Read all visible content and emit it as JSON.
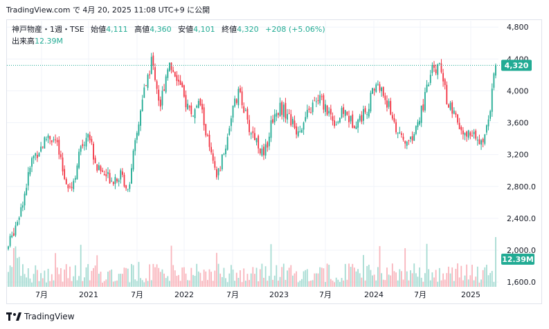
{
  "header": {
    "text": "TradingView.com で 4月 20, 2025 11:08 UTC+9 に公開"
  },
  "legend": {
    "symbol": "神戸物産・1週・TSE",
    "open_label": "始値",
    "open_value": "4,111",
    "high_label": "高値",
    "high_value": "4,360",
    "low_label": "安値",
    "low_value": "4,101",
    "close_label": "終値",
    "close_value": "4,320",
    "change": "+208 (+5.06%)"
  },
  "volume_legend": {
    "label": "出来高",
    "value": "12.39M"
  },
  "price_badge": "4,320",
  "volume_badge": "12.39M",
  "footer": {
    "brand": "TradingView"
  },
  "colors": {
    "up": "#22ab94",
    "down": "#f23645",
    "vol_up": "#a7dcd3",
    "vol_down": "#f9b6bd",
    "grid": "#f0f3fa",
    "last_line": "#22ab94"
  },
  "chart_data": {
    "type": "candlestick",
    "y_axis_ticks": [
      "4,800",
      "4,400",
      "4,000",
      "3,600",
      "3,200",
      "2,800.0",
      "2,400.0",
      "2,000.0",
      "1,600.0"
    ],
    "y_axis_values": [
      4800,
      4400,
      4000,
      3600,
      3200,
      2800,
      2400,
      2000,
      1600
    ],
    "x_axis_ticks": [
      "7月",
      "2021",
      "7月",
      "2022",
      "7月",
      "2023",
      "7月",
      "2024",
      "7月",
      "2025"
    ],
    "ylim": [
      1540,
      4880
    ],
    "last_close": 4320,
    "last_volume": "12.39M",
    "close_path": [
      [
        "2020-03",
        2050
      ],
      [
        "2020-04",
        2350
      ],
      [
        "2020-05",
        2700
      ],
      [
        "2020-06",
        3150
      ],
      [
        "2020-07",
        3280
      ],
      [
        "2020-08",
        3450
      ],
      [
        "2020-09",
        3350
      ],
      [
        "2020-10",
        2900
      ],
      [
        "2020-11",
        2800
      ],
      [
        "2020-12",
        3250
      ],
      [
        "2021-01",
        3500
      ],
      [
        "2021-02",
        3050
      ],
      [
        "2021-03",
        2950
      ],
      [
        "2021-04",
        2900
      ],
      [
        "2021-05",
        2950
      ],
      [
        "2021-06",
        2780
      ],
      [
        "2021-07",
        3400
      ],
      [
        "2021-08",
        4000
      ],
      [
        "2021-09",
        4400
      ],
      [
        "2021-10",
        3800
      ],
      [
        "2021-11",
        4350
      ],
      [
        "2021-12",
        4200
      ],
      [
        "2022-01",
        3900
      ],
      [
        "2022-02",
        3700
      ],
      [
        "2022-03",
        3850
      ],
      [
        "2022-04",
        3350
      ],
      [
        "2022-05",
        2900
      ],
      [
        "2022-06",
        3200
      ],
      [
        "2022-07",
        3750
      ],
      [
        "2022-08",
        4000
      ],
      [
        "2022-09",
        3550
      ],
      [
        "2022-10",
        3400
      ],
      [
        "2022-11",
        3150
      ],
      [
        "2022-12",
        3650
      ],
      [
        "2023-01",
        3800
      ],
      [
        "2023-02",
        3700
      ],
      [
        "2023-03",
        3500
      ],
      [
        "2023-04",
        3600
      ],
      [
        "2023-05",
        3800
      ],
      [
        "2023-06",
        3900
      ],
      [
        "2023-07",
        3750
      ],
      [
        "2023-08",
        3600
      ],
      [
        "2023-09",
        3750
      ],
      [
        "2023-10",
        3600
      ],
      [
        "2023-11",
        3650
      ],
      [
        "2023-12",
        3800
      ],
      [
        "2024-01",
        4100
      ],
      [
        "2024-02",
        3950
      ],
      [
        "2024-03",
        3700
      ],
      [
        "2024-04",
        3400
      ],
      [
        "2024-05",
        3350
      ],
      [
        "2024-06",
        3500
      ],
      [
        "2024-07",
        3850
      ],
      [
        "2024-08",
        4250
      ],
      [
        "2024-09",
        4300
      ],
      [
        "2024-10",
        3850
      ],
      [
        "2024-11",
        3650
      ],
      [
        "2024-12",
        3400
      ],
      [
        "2025-01",
        3500
      ],
      [
        "2025-02",
        3300
      ],
      [
        "2025-03",
        3550
      ],
      [
        "2025-04",
        4320
      ]
    ]
  }
}
